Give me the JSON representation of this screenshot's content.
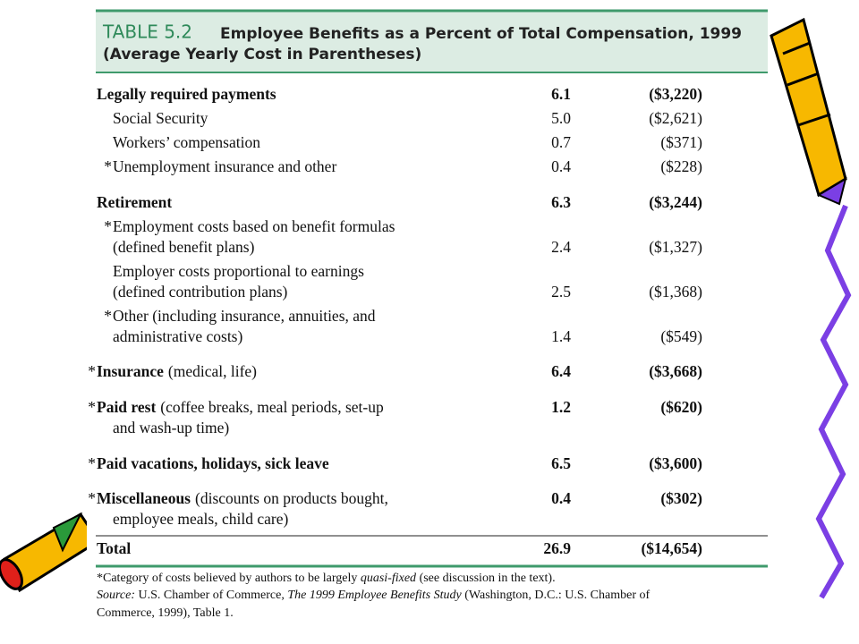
{
  "header": {
    "label": "TABLE 5.2",
    "title": "Employee Benefits as a Percent of Total Compensation, 1999",
    "subtitle": "(Average Yearly Cost in Parentheses)"
  },
  "rows": [
    {
      "level": 0,
      "title": "Legally required payments",
      "percent": "6.1",
      "cost": "($3,220)"
    },
    {
      "level": 1,
      "lines": [
        "Social Security"
      ],
      "percent": "5.0",
      "cost": "($2,621)"
    },
    {
      "level": 1,
      "lines": [
        "Workers’ compensation"
      ],
      "percent": "0.7",
      "cost": "($371)"
    },
    {
      "level": 1,
      "marker": "*",
      "lines": [
        "Unemployment insurance and other"
      ],
      "percent": "0.4",
      "cost": "($228)"
    },
    {
      "level": 0,
      "title": "Retirement",
      "percent": "6.3",
      "cost": "($3,244)"
    },
    {
      "level": 1,
      "marker": "*",
      "lines": [
        "Employment costs based on benefit formulas",
        "(defined benefit plans)"
      ],
      "percent": "2.4",
      "cost": "($1,327)"
    },
    {
      "level": 1,
      "lines": [
        "Employer costs proportional to earnings",
        "(defined contribution plans)"
      ],
      "percent": "2.5",
      "cost": "($1,368)"
    },
    {
      "level": 1,
      "marker": "*",
      "lines": [
        "Other (including insurance, annuities, and",
        "administrative costs)"
      ],
      "percent": "1.4",
      "cost": "($549)"
    },
    {
      "level": 0,
      "marker": "*",
      "title": "Insurance",
      "lines": [
        "(medical, life)"
      ],
      "percent": "6.4",
      "cost": "($3,668)"
    },
    {
      "level": 0,
      "marker": "*",
      "title": "Paid rest",
      "lines": [
        "(coffee breaks, meal periods, set-up",
        "and wash-up time)"
      ],
      "percent": "1.2",
      "cost": "($620)"
    },
    {
      "level": 0,
      "marker": "*",
      "title": "Paid vacations, holidays, sick leave",
      "percent": "6.5",
      "cost": "($3,600)"
    },
    {
      "level": 0,
      "marker": "*",
      "title": "Miscellaneous",
      "lines": [
        "(discounts on products bought,",
        "employee meals, child care)"
      ],
      "percent": "0.4",
      "cost": "($302)"
    },
    {
      "level": 0,
      "title": "Total",
      "percent": "26.9",
      "cost": "($14,654)"
    }
  ],
  "notes": [
    [
      {
        "text": "*Category of costs believed by authors to be largely "
      },
      {
        "text": "quasi-fixed",
        "italic": true
      },
      {
        "text": " (see discussion in the text)."
      }
    ],
    [
      {
        "text": "Source:",
        "italic": true
      },
      {
        "text": " U.S. Chamber of Commerce, "
      },
      {
        "text": "The 1999 Employee Benefits Study",
        "italic": true
      },
      {
        "text": " (Washington, D.C.: U.S. Chamber of"
      }
    ],
    [
      {
        "text": "Commerce, 1999), Table 1."
      }
    ]
  ]
}
